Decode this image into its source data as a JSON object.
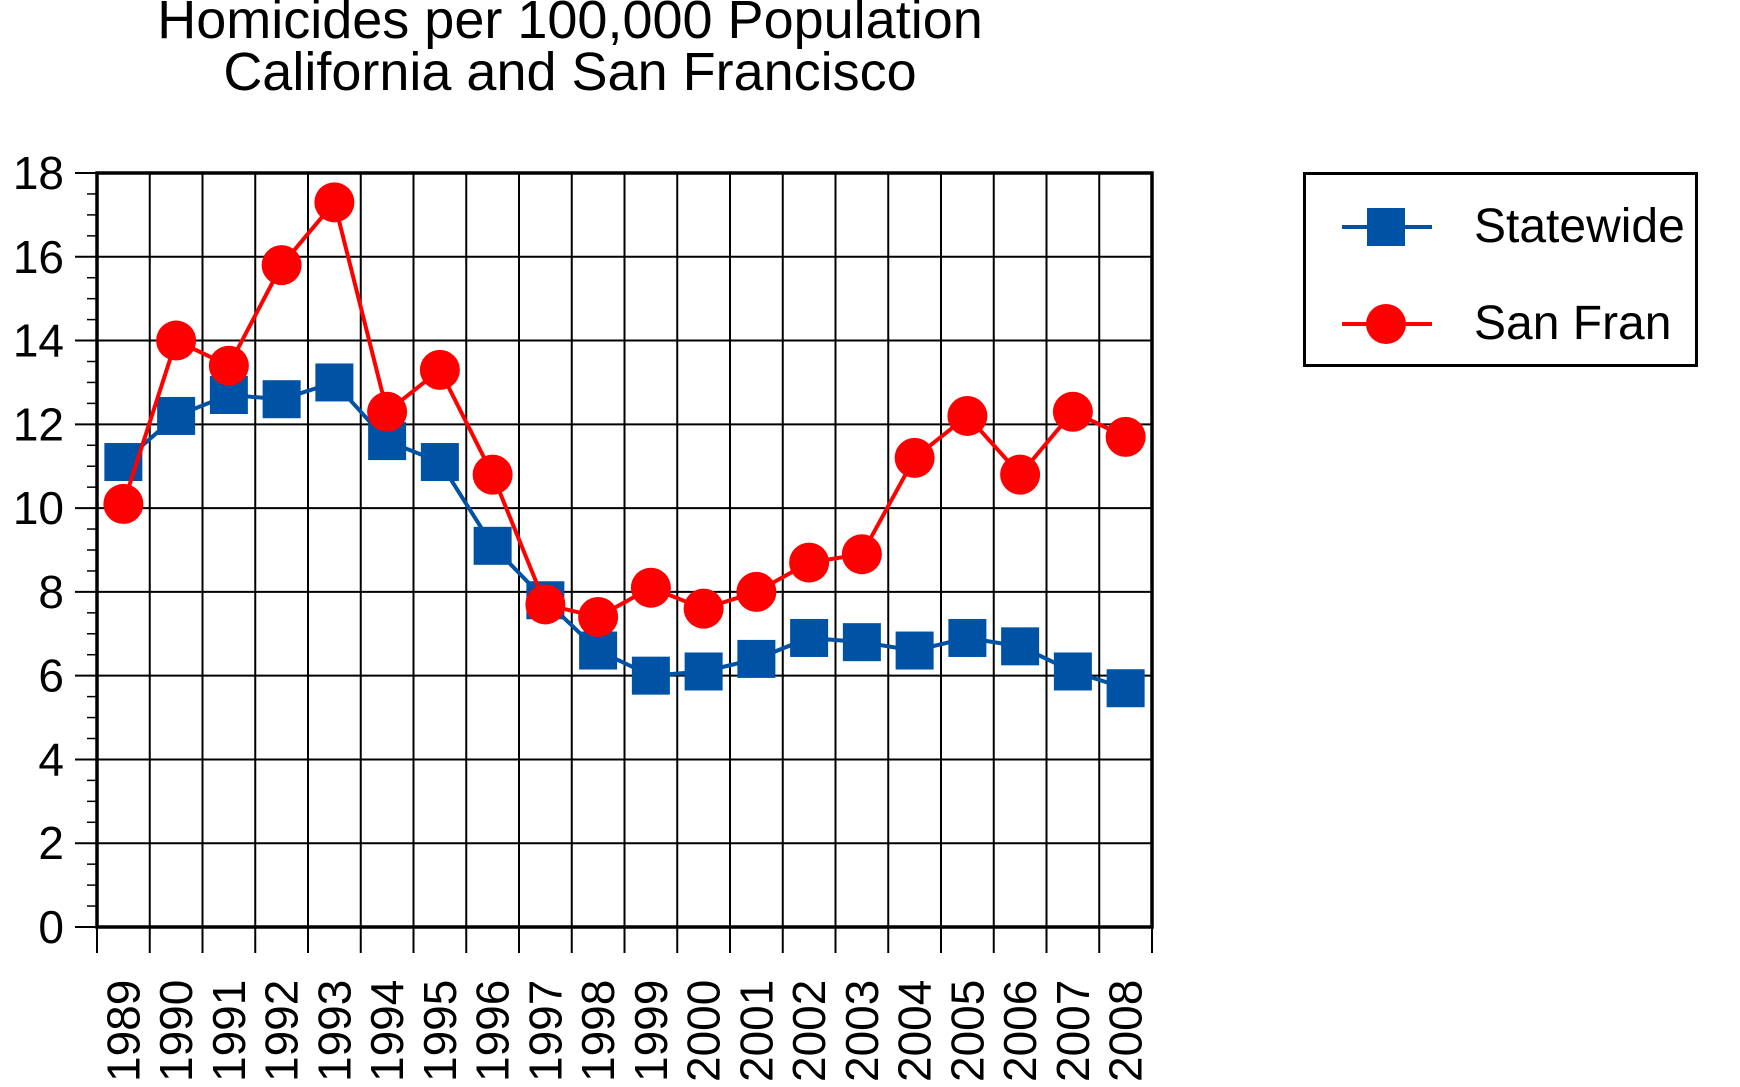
{
  "colors": {
    "statewide": "#0052a5",
    "san_fran": "#ff0000",
    "axis": "#000000",
    "grid": "#000000"
  },
  "chart_data": {
    "type": "line",
    "title": "Homicides per 100,000 Population",
    "subtitle": "California and San Francisco",
    "xlabel": "",
    "ylabel": "",
    "categories": [
      "1989",
      "1990",
      "1991",
      "1992",
      "1993",
      "1994",
      "1995",
      "1996",
      "1997",
      "1998",
      "1999",
      "2000",
      "2001",
      "2002",
      "2003",
      "2004",
      "2005",
      "2006",
      "2007",
      "2008"
    ],
    "ylim": [
      0,
      18
    ],
    "yticks": [
      0,
      2,
      4,
      6,
      8,
      10,
      12,
      14,
      16,
      18
    ],
    "grid": true,
    "legend_position": "top-right-outside",
    "series": [
      {
        "name": "Statewide",
        "marker": "square",
        "color": "#0052a5",
        "values": [
          11.1,
          12.2,
          12.7,
          12.6,
          13.0,
          11.6,
          11.1,
          9.1,
          7.8,
          6.6,
          6.0,
          6.1,
          6.4,
          6.9,
          6.8,
          6.6,
          6.9,
          6.7,
          6.1,
          5.7
        ]
      },
      {
        "name": "San Fran",
        "marker": "circle",
        "color": "#ff0000",
        "values": [
          10.1,
          14.0,
          13.4,
          15.8,
          17.3,
          12.3,
          13.3,
          10.8,
          7.7,
          7.4,
          8.1,
          7.6,
          8.0,
          8.7,
          8.9,
          11.2,
          12.2,
          10.8,
          12.3,
          11.7
        ]
      }
    ]
  }
}
